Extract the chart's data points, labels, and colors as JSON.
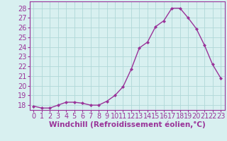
{
  "x": [
    0,
    1,
    2,
    3,
    4,
    5,
    6,
    7,
    8,
    9,
    10,
    11,
    12,
    13,
    14,
    15,
    16,
    17,
    18,
    19,
    20,
    21,
    22,
    23
  ],
  "y": [
    17.9,
    17.7,
    17.7,
    18.0,
    18.3,
    18.3,
    18.2,
    18.0,
    18.0,
    18.4,
    19.0,
    19.9,
    21.7,
    23.9,
    24.5,
    26.1,
    26.7,
    28.0,
    28.0,
    27.0,
    25.9,
    24.2,
    22.2,
    20.8
  ],
  "line_color": "#993399",
  "marker": "D",
  "markersize": 2.0,
  "linewidth": 1.0,
  "xlabel": "Windchill (Refroidissement éolien,°C)",
  "ylabel": "",
  "ylim": [
    17.5,
    28.7
  ],
  "yticks": [
    18,
    19,
    20,
    21,
    22,
    23,
    24,
    25,
    26,
    27,
    28
  ],
  "xticks": [
    0,
    1,
    2,
    3,
    4,
    5,
    6,
    7,
    8,
    9,
    10,
    11,
    12,
    13,
    14,
    15,
    16,
    17,
    18,
    19,
    20,
    21,
    22,
    23
  ],
  "grid_color": "#b0d8d8",
  "background_color": "#d8f0f0",
  "title_color": "#993399",
  "xlabel_fontsize": 7.5,
  "tick_fontsize": 7.0,
  "tick_color": "#993399",
  "spine_color": "#993399"
}
